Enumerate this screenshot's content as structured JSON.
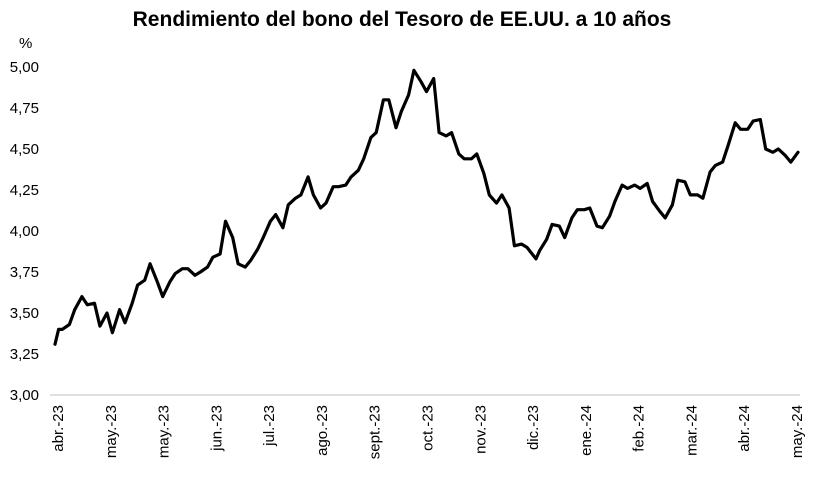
{
  "chart_data": {
    "type": "line",
    "title": "Rendimiento del bono del Tesoro de EE.UU. a 10 años",
    "ylabel": "%",
    "xlabel": "",
    "ylim": [
      3.0,
      5.0
    ],
    "yticks": [
      "3,00",
      "3,25",
      "3,50",
      "3,75",
      "4,00",
      "4,25",
      "4,50",
      "4,75",
      "5,00"
    ],
    "yticks_values": [
      3.0,
      3.25,
      3.5,
      3.75,
      4.0,
      4.25,
      4.5,
      4.75,
      5.0
    ],
    "grid": false,
    "legend": "none",
    "x_labels": [
      "abr.-23",
      "may.-23",
      "may.-23",
      "jun.-23",
      "jul.-23",
      "ago.-23",
      "sept.-23",
      "oct.-23",
      "nov.-23",
      "dic.-23",
      "ene.-24",
      "feb.-24",
      "mar.-24",
      "abr.-24",
      "may.-24"
    ],
    "series": [
      {
        "color": "#000000",
        "x": [
          "2023-04-03",
          "2023-04-05",
          "2023-04-07",
          "2023-04-11",
          "2023-04-14",
          "2023-04-18",
          "2023-04-21",
          "2023-04-25",
          "2023-04-28",
          "2023-05-02",
          "2023-05-05",
          "2023-05-09",
          "2023-05-12",
          "2023-05-16",
          "2023-05-19",
          "2023-05-23",
          "2023-05-26",
          "2023-05-30",
          "2023-06-02",
          "2023-06-06",
          "2023-06-09",
          "2023-06-13",
          "2023-06-16",
          "2023-06-20",
          "2023-06-23",
          "2023-06-27",
          "2023-06-30",
          "2023-07-04",
          "2023-07-07",
          "2023-07-11",
          "2023-07-14",
          "2023-07-18",
          "2023-07-21",
          "2023-07-25",
          "2023-07-28",
          "2023-08-01",
          "2023-08-04",
          "2023-08-08",
          "2023-08-11",
          "2023-08-15",
          "2023-08-18",
          "2023-08-22",
          "2023-08-25",
          "2023-08-29",
          "2023-09-01",
          "2023-09-05",
          "2023-09-08",
          "2023-09-12",
          "2023-09-15",
          "2023-09-19",
          "2023-09-22",
          "2023-09-26",
          "2023-09-29",
          "2023-10-03",
          "2023-10-06",
          "2023-10-10",
          "2023-10-13",
          "2023-10-17",
          "2023-10-20",
          "2023-10-24",
          "2023-10-27",
          "2023-10-31",
          "2023-11-03",
          "2023-11-07",
          "2023-11-10",
          "2023-11-14",
          "2023-11-17",
          "2023-11-21",
          "2023-11-24",
          "2023-11-28",
          "2023-12-01",
          "2023-12-05",
          "2023-12-08",
          "2023-12-12",
          "2023-12-15",
          "2023-12-19",
          "2023-12-22",
          "2023-12-27",
          "2023-12-29",
          "2024-01-02",
          "2024-01-05",
          "2024-01-09",
          "2024-01-12",
          "2024-01-16",
          "2024-01-19",
          "2024-01-23",
          "2024-01-26",
          "2024-01-30",
          "2024-02-02",
          "2024-02-06",
          "2024-02-09",
          "2024-02-13",
          "2024-02-16",
          "2024-02-20",
          "2024-02-23",
          "2024-02-27",
          "2024-03-01",
          "2024-03-05",
          "2024-03-08",
          "2024-03-12",
          "2024-03-15",
          "2024-03-19",
          "2024-03-22",
          "2024-03-26",
          "2024-03-29",
          "2024-04-02",
          "2024-04-05",
          "2024-04-09",
          "2024-04-12",
          "2024-04-16",
          "2024-04-19",
          "2024-04-23",
          "2024-04-26",
          "2024-04-30",
          "2024-05-03",
          "2024-05-07",
          "2024-05-10",
          "2024-05-14",
          "2024-05-17",
          "2024-05-21"
        ],
        "values": [
          3.31,
          3.4,
          3.4,
          3.43,
          3.52,
          3.6,
          3.55,
          3.56,
          3.42,
          3.5,
          3.38,
          3.52,
          3.44,
          3.56,
          3.67,
          3.7,
          3.8,
          3.69,
          3.6,
          3.69,
          3.74,
          3.77,
          3.77,
          3.73,
          3.75,
          3.78,
          3.84,
          3.86,
          4.06,
          3.96,
          3.8,
          3.78,
          3.82,
          3.89,
          3.96,
          4.06,
          4.1,
          4.02,
          4.16,
          4.2,
          4.22,
          4.33,
          4.22,
          4.14,
          4.17,
          4.27,
          4.27,
          4.28,
          4.33,
          4.37,
          4.44,
          4.57,
          4.6,
          4.8,
          4.8,
          4.63,
          4.73,
          4.83,
          4.98,
          4.91,
          4.85,
          4.93,
          4.6,
          4.58,
          4.6,
          4.47,
          4.44,
          4.44,
          4.47,
          4.35,
          4.22,
          4.17,
          4.22,
          4.14,
          3.91,
          3.92,
          3.9,
          3.83,
          3.88,
          3.95,
          4.04,
          4.03,
          3.96,
          4.08,
          4.13,
          4.13,
          4.14,
          4.03,
          4.02,
          4.09,
          4.18,
          4.28,
          4.26,
          4.28,
          4.26,
          4.29,
          4.18,
          4.12,
          4.08,
          4.16,
          4.31,
          4.3,
          4.22,
          4.22,
          4.2,
          4.36,
          4.4,
          4.42,
          4.52,
          4.66,
          4.62,
          4.62,
          4.67,
          4.68,
          4.5,
          4.48,
          4.5,
          4.46,
          4.42,
          4.48
        ]
      }
    ]
  }
}
